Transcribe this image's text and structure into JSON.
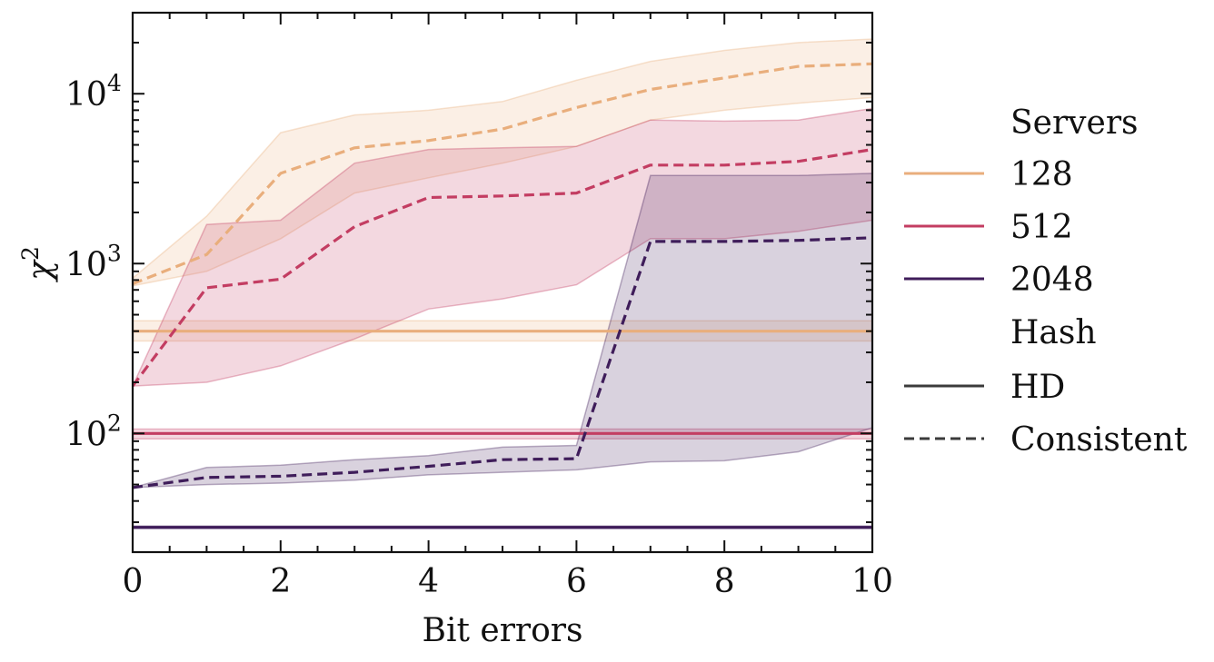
{
  "chart_data": {
    "type": "line",
    "xlabel": "Bit errors",
    "ylabel": "χ",
    "ylabel_superscript": "2",
    "xlim": [
      0,
      10
    ],
    "ylim": [
      20,
      30000
    ],
    "yscale": "log",
    "grid": false,
    "legend_position": "right, outside plot",
    "x_ticks": [
      "0",
      "2",
      "4",
      "6",
      "8",
      "10"
    ],
    "y_ticks": [
      {
        "base": "10",
        "exp": "2",
        "value": 100
      },
      {
        "base": "10",
        "exp": "3",
        "value": 1000
      },
      {
        "base": "10",
        "exp": "4",
        "value": 10000
      }
    ],
    "legend": {
      "servers_title": "Servers",
      "hash_title": "Hash",
      "servers": [
        {
          "label": "128",
          "color": "#e9ae7c"
        },
        {
          "label": "512",
          "color": "#c33d62"
        },
        {
          "label": "2048",
          "color": "#3f1d5a"
        }
      ],
      "hash": [
        {
          "label": "HD",
          "style": "solid",
          "color": "#3b3b3b"
        },
        {
          "label": "Consistent",
          "style": "dashed",
          "color": "#3b3b3b"
        }
      ]
    },
    "x": [
      0,
      1,
      2,
      3,
      4,
      5,
      6,
      7,
      8,
      9,
      10
    ],
    "series": [
      {
        "name": "128",
        "hash": "HD",
        "style": "solid",
        "color": "#e9ae7c",
        "values": [
          400,
          400,
          400,
          400,
          400,
          400,
          400,
          400,
          400,
          400,
          400
        ],
        "lower": [
          350,
          350,
          350,
          350,
          350,
          350,
          350,
          350,
          350,
          350,
          350
        ],
        "upper": [
          460,
          460,
          460,
          460,
          460,
          460,
          460,
          460,
          460,
          460,
          460
        ]
      },
      {
        "name": "512",
        "hash": "HD",
        "style": "solid",
        "color": "#c33d62",
        "values": [
          100,
          100,
          100,
          100,
          100,
          100,
          100,
          100,
          100,
          100,
          100
        ],
        "lower": [
          93,
          93,
          93,
          93,
          93,
          93,
          93,
          93,
          93,
          93,
          93
        ],
        "upper": [
          106,
          106,
          106,
          106,
          106,
          106,
          106,
          106,
          106,
          106,
          106
        ]
      },
      {
        "name": "2048",
        "hash": "HD",
        "style": "solid",
        "color": "#3f1d5a",
        "values": [
          28,
          28,
          28,
          28,
          28,
          28,
          28,
          28,
          28,
          28,
          28
        ],
        "lower": [
          27.5,
          27.5,
          27.5,
          27.5,
          27.5,
          27.5,
          27.5,
          27.5,
          27.5,
          27.5,
          27.5
        ],
        "upper": [
          28.5,
          28.5,
          28.5,
          28.5,
          28.5,
          28.5,
          28.5,
          28.5,
          28.5,
          28.5,
          28.5
        ]
      },
      {
        "name": "128",
        "hash": "Consistent",
        "style": "dashed",
        "color": "#e9ae7c",
        "values": [
          760,
          1130,
          3400,
          4800,
          5300,
          6200,
          8300,
          10600,
          12400,
          14500,
          15000
        ],
        "lower": [
          740,
          900,
          1400,
          2600,
          3200,
          3900,
          4900,
          7000,
          8000,
          8800,
          9500
        ],
        "upper": [
          820,
          1900,
          5900,
          7500,
          8000,
          9000,
          12000,
          15500,
          18000,
          20000,
          21000
        ]
      },
      {
        "name": "512",
        "hash": "Consistent",
        "style": "dashed",
        "color": "#c33d62",
        "values": [
          190,
          720,
          810,
          1650,
          2450,
          2500,
          2600,
          3800,
          3800,
          4000,
          4700
        ],
        "lower": [
          190,
          200,
          250,
          360,
          540,
          620,
          750,
          1400,
          1400,
          1550,
          1800
        ],
        "upper": [
          190,
          1700,
          1800,
          3900,
          4700,
          4800,
          4900,
          7000,
          6900,
          7000,
          8200
        ]
      },
      {
        "name": "2048",
        "hash": "Consistent",
        "style": "dashed",
        "color": "#3f1d5a",
        "values": [
          48,
          55,
          56,
          59,
          64,
          70,
          71,
          1350,
          1350,
          1370,
          1420
        ],
        "lower": [
          48,
          50,
          51,
          53,
          57,
          59,
          61,
          68,
          69,
          78,
          108
        ],
        "upper": [
          48,
          63,
          65,
          70,
          74,
          83,
          85,
          3300,
          3300,
          3300,
          3400
        ]
      }
    ]
  }
}
